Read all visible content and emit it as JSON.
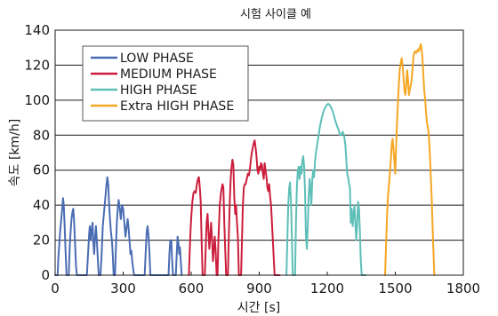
{
  "chart_data": {
    "type": "line",
    "title": "시험 사이클 예",
    "xlabel": "시간 [s]",
    "ylabel": "속도 [km/h]",
    "xlim": [
      0,
      1800
    ],
    "ylim": [
      0,
      140
    ],
    "xticks": [
      0,
      300,
      600,
      900,
      1200,
      1500,
      1800
    ],
    "yticks": [
      0,
      20,
      40,
      60,
      80,
      100,
      120,
      140
    ],
    "grid": "horizontal",
    "legend_position": "top-left",
    "series": [
      {
        "name": "LOW PHASE",
        "color": "#4a6cb3",
        "points": [
          [
            0,
            0
          ],
          [
            11,
            0
          ],
          [
            14,
            10
          ],
          [
            18,
            17
          ],
          [
            22,
            25
          ],
          [
            27,
            32
          ],
          [
            31,
            38
          ],
          [
            35,
            44
          ],
          [
            38,
            40
          ],
          [
            42,
            28
          ],
          [
            46,
            14
          ],
          [
            50,
            0
          ],
          [
            60,
            0
          ],
          [
            64,
            15
          ],
          [
            68,
            24
          ],
          [
            72,
            32
          ],
          [
            76,
            36
          ],
          [
            80,
            38
          ],
          [
            84,
            30
          ],
          [
            88,
            18
          ],
          [
            92,
            5
          ],
          [
            96,
            0
          ],
          [
            140,
            0
          ],
          [
            145,
            12
          ],
          [
            150,
            24
          ],
          [
            153,
            28
          ],
          [
            157,
            20
          ],
          [
            161,
            26
          ],
          [
            165,
            30
          ],
          [
            168,
            20
          ],
          [
            172,
            12
          ],
          [
            176,
            22
          ],
          [
            180,
            28
          ],
          [
            184,
            20
          ],
          [
            188,
            10
          ],
          [
            192,
            0
          ],
          [
            200,
            0
          ],
          [
            205,
            12
          ],
          [
            210,
            28
          ],
          [
            215,
            35
          ],
          [
            220,
            42
          ],
          [
            225,
            50
          ],
          [
            230,
            56
          ],
          [
            234,
            52
          ],
          [
            238,
            40
          ],
          [
            242,
            32
          ],
          [
            246,
            25
          ],
          [
            250,
            20
          ],
          [
            254,
            12
          ],
          [
            258,
            0
          ],
          [
            264,
            0
          ],
          [
            268,
            15
          ],
          [
            272,
            30
          ],
          [
            276,
            38
          ],
          [
            280,
            43
          ],
          [
            285,
            38
          ],
          [
            290,
            32
          ],
          [
            295,
            40
          ],
          [
            300,
            38
          ],
          [
            305,
            30
          ],
          [
            310,
            22
          ],
          [
            315,
            27
          ],
          [
            320,
            32
          ],
          [
            324,
            27
          ],
          [
            328,
            20
          ],
          [
            332,
            12
          ],
          [
            336,
            14
          ],
          [
            340,
            8
          ],
          [
            344,
            4
          ],
          [
            348,
            0
          ],
          [
            395,
            0
          ],
          [
            400,
            15
          ],
          [
            404,
            25
          ],
          [
            408,
            28
          ],
          [
            412,
            22
          ],
          [
            416,
            12
          ],
          [
            420,
            0
          ],
          [
            500,
            0
          ],
          [
            504,
            12
          ],
          [
            508,
            20
          ],
          [
            512,
            20
          ],
          [
            516,
            8
          ],
          [
            520,
            0
          ],
          [
            532,
            0
          ],
          [
            536,
            12
          ],
          [
            540,
            22
          ],
          [
            544,
            18
          ],
          [
            547,
            12
          ],
          [
            550,
            16
          ],
          [
            554,
            8
          ],
          [
            558,
            0
          ]
        ]
      },
      {
        "name": "MEDIUM PHASE",
        "color": "#cc1e3c",
        "points": [
          [
            590,
            0
          ],
          [
            593,
            12
          ],
          [
            597,
            25
          ],
          [
            601,
            35
          ],
          [
            605,
            42
          ],
          [
            610,
            47
          ],
          [
            615,
            48
          ],
          [
            620,
            47
          ],
          [
            625,
            52
          ],
          [
            630,
            55
          ],
          [
            634,
            56
          ],
          [
            638,
            50
          ],
          [
            642,
            42
          ],
          [
            646,
            20
          ],
          [
            650,
            0
          ],
          [
            660,
            0
          ],
          [
            664,
            15
          ],
          [
            668,
            30
          ],
          [
            672,
            35
          ],
          [
            676,
            25
          ],
          [
            680,
            15
          ],
          [
            684,
            22
          ],
          [
            688,
            30
          ],
          [
            692,
            20
          ],
          [
            696,
            8
          ],
          [
            700,
            15
          ],
          [
            704,
            22
          ],
          [
            708,
            14
          ],
          [
            712,
            0
          ],
          [
            716,
            0
          ],
          [
            720,
            20
          ],
          [
            726,
            40
          ],
          [
            732,
            48
          ],
          [
            738,
            52
          ],
          [
            742,
            50
          ],
          [
            746,
            30
          ],
          [
            750,
            14
          ],
          [
            754,
            0
          ],
          [
            762,
            0
          ],
          [
            766,
            22
          ],
          [
            770,
            42
          ],
          [
            774,
            55
          ],
          [
            778,
            62
          ],
          [
            782,
            66
          ],
          [
            786,
            63
          ],
          [
            790,
            45
          ],
          [
            794,
            35
          ],
          [
            798,
            40
          ],
          [
            802,
            30
          ],
          [
            806,
            22
          ],
          [
            810,
            0
          ],
          [
            820,
            0
          ],
          [
            824,
            20
          ],
          [
            828,
            40
          ],
          [
            832,
            50
          ],
          [
            836,
            52
          ],
          [
            840,
            52
          ],
          [
            845,
            55
          ],
          [
            850,
            58
          ],
          [
            855,
            57
          ],
          [
            860,
            62
          ],
          [
            865,
            68
          ],
          [
            870,
            72
          ],
          [
            875,
            75
          ],
          [
            880,
            77
          ],
          [
            884,
            73
          ],
          [
            888,
            68
          ],
          [
            892,
            60
          ],
          [
            896,
            58
          ],
          [
            900,
            62
          ],
          [
            904,
            60
          ],
          [
            908,
            64
          ],
          [
            912,
            63
          ],
          [
            916,
            58
          ],
          [
            920,
            55
          ],
          [
            924,
            64
          ],
          [
            928,
            60
          ],
          [
            932,
            56
          ],
          [
            936,
            50
          ],
          [
            940,
            48
          ],
          [
            944,
            52
          ],
          [
            948,
            45
          ],
          [
            952,
            40
          ],
          [
            956,
            30
          ],
          [
            960,
            20
          ],
          [
            964,
            10
          ],
          [
            968,
            0
          ],
          [
            985,
            0
          ],
          [
            990,
            0
          ]
        ]
      },
      {
        "name": "HIGH PHASE",
        "color": "#5ebfb8",
        "points": [
          [
            1020,
            0
          ],
          [
            1024,
            20
          ],
          [
            1028,
            40
          ],
          [
            1032,
            50
          ],
          [
            1036,
            53
          ],
          [
            1040,
            42
          ],
          [
            1044,
            22
          ],
          [
            1048,
            0
          ],
          [
            1058,
            0
          ],
          [
            1062,
            30
          ],
          [
            1066,
            50
          ],
          [
            1070,
            60
          ],
          [
            1074,
            62
          ],
          [
            1078,
            55
          ],
          [
            1082,
            62
          ],
          [
            1086,
            58
          ],
          [
            1090,
            65
          ],
          [
            1094,
            68
          ],
          [
            1098,
            62
          ],
          [
            1102,
            48
          ],
          [
            1106,
            22
          ],
          [
            1110,
            15
          ],
          [
            1114,
            28
          ],
          [
            1118,
            45
          ],
          [
            1122,
            55
          ],
          [
            1126,
            50
          ],
          [
            1130,
            40
          ],
          [
            1134,
            55
          ],
          [
            1138,
            60
          ],
          [
            1142,
            56
          ],
          [
            1146,
            65
          ],
          [
            1150,
            70
          ],
          [
            1156,
            75
          ],
          [
            1162,
            80
          ],
          [
            1168,
            85
          ],
          [
            1174,
            89
          ],
          [
            1180,
            92
          ],
          [
            1188,
            95
          ],
          [
            1196,
            97
          ],
          [
            1204,
            98
          ],
          [
            1212,
            97
          ],
          [
            1220,
            95
          ],
          [
            1228,
            92
          ],
          [
            1236,
            88
          ],
          [
            1244,
            85
          ],
          [
            1250,
            83
          ],
          [
            1256,
            80
          ],
          [
            1262,
            80
          ],
          [
            1268,
            82
          ],
          [
            1274,
            80
          ],
          [
            1280,
            74
          ],
          [
            1284,
            66
          ],
          [
            1288,
            58
          ],
          [
            1292,
            56
          ],
          [
            1296,
            52
          ],
          [
            1300,
            50
          ],
          [
            1304,
            30
          ],
          [
            1308,
            38
          ],
          [
            1312,
            28
          ],
          [
            1316,
            35
          ],
          [
            1320,
            40
          ],
          [
            1324,
            30
          ],
          [
            1328,
            20
          ],
          [
            1332,
            30
          ],
          [
            1336,
            42
          ],
          [
            1340,
            38
          ],
          [
            1344,
            25
          ],
          [
            1348,
            8
          ],
          [
            1352,
            0
          ],
          [
            1370,
            0
          ]
        ]
      },
      {
        "name": "Extra HIGH PHASE",
        "color": "#f5a623",
        "points": [
          [
            1455,
            0
          ],
          [
            1460,
            20
          ],
          [
            1464,
            35
          ],
          [
            1468,
            45
          ],
          [
            1472,
            52
          ],
          [
            1476,
            58
          ],
          [
            1480,
            65
          ],
          [
            1484,
            74
          ],
          [
            1488,
            78
          ],
          [
            1492,
            72
          ],
          [
            1496,
            65
          ],
          [
            1500,
            58
          ],
          [
            1504,
            75
          ],
          [
            1508,
            88
          ],
          [
            1512,
            100
          ],
          [
            1516,
            110
          ],
          [
            1520,
            118
          ],
          [
            1524,
            121
          ],
          [
            1528,
            124
          ],
          [
            1532,
            120
          ],
          [
            1536,
            113
          ],
          [
            1540,
            106
          ],
          [
            1544,
            103
          ],
          [
            1548,
            108
          ],
          [
            1552,
            117
          ],
          [
            1556,
            112
          ],
          [
            1560,
            103
          ],
          [
            1564,
            106
          ],
          [
            1568,
            108
          ],
          [
            1572,
            112
          ],
          [
            1576,
            118
          ],
          [
            1580,
            125
          ],
          [
            1584,
            127
          ],
          [
            1588,
            128
          ],
          [
            1592,
            127
          ],
          [
            1596,
            128
          ],
          [
            1600,
            129
          ],
          [
            1604,
            128
          ],
          [
            1608,
            130
          ],
          [
            1612,
            132
          ],
          [
            1616,
            129
          ],
          [
            1620,
            124
          ],
          [
            1624,
            114
          ],
          [
            1628,
            105
          ],
          [
            1632,
            100
          ],
          [
            1636,
            92
          ],
          [
            1640,
            87
          ],
          [
            1644,
            84
          ],
          [
            1648,
            80
          ],
          [
            1652,
            70
          ],
          [
            1656,
            58
          ],
          [
            1660,
            46
          ],
          [
            1664,
            30
          ],
          [
            1668,
            15
          ],
          [
            1672,
            0
          ]
        ]
      }
    ]
  }
}
